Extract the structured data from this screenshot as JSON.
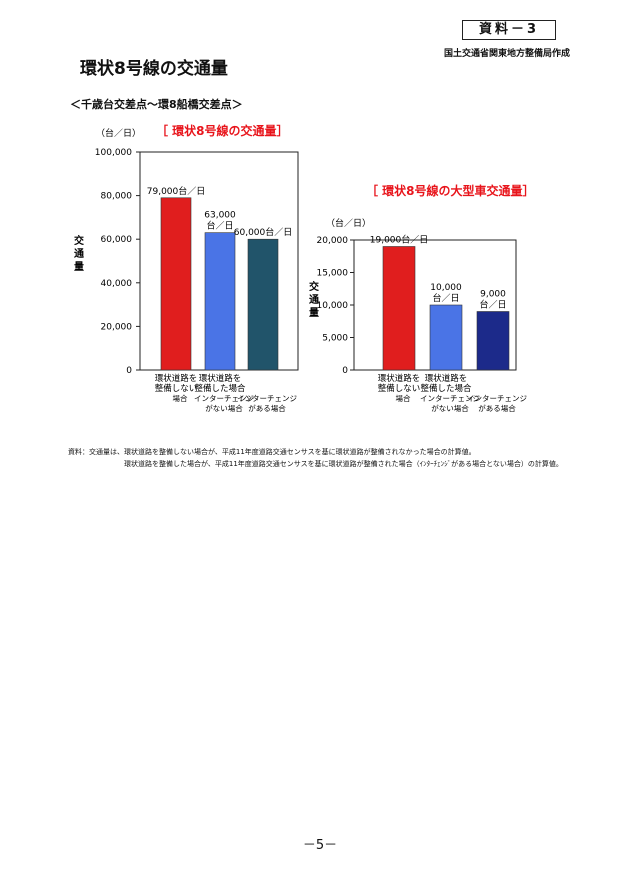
{
  "header": {
    "doc_label": "資料－3",
    "source_org": "国土交通省関東地方整備局作成",
    "page_title": "環状8号線の交通量",
    "section_range": "＜千歳台交差点～環8船橋交差点＞"
  },
  "chart_data": [
    {
      "type": "bar",
      "title": "［ 環状8号線の交通量］",
      "unit_label": "（台／日）",
      "ylabel": "交通量",
      "ylim": [
        0,
        100000
      ],
      "yticks": [
        "0",
        "20,000",
        "40,000",
        "60,000",
        "80,000",
        "100,000"
      ],
      "categories": [
        [
          "環状道路を",
          "整備しない",
          "場合"
        ],
        [
          "環状道路を",
          "整備した場合",
          "インターチェンジ",
          "がない場合"
        ],
        [
          "",
          "",
          "インターチェンジ",
          "がある場合"
        ]
      ],
      "values": [
        79000,
        63000,
        60000
      ],
      "value_labels": [
        [
          "79,000台／日"
        ],
        [
          "63,000",
          "台／日"
        ],
        [
          "60,000台／日"
        ]
      ],
      "colors": [
        "#e01e1e",
        "#4a74e6",
        "#21546a"
      ],
      "grid": false
    },
    {
      "type": "bar",
      "title": "［ 環状8号線の大型車交通量］",
      "unit_label": "（台／日）",
      "ylabel": "交通量",
      "ylim": [
        0,
        20000
      ],
      "yticks": [
        "0",
        "5,000",
        "10,000",
        "15,000",
        "20,000"
      ],
      "categories": [
        [
          "環状道路を",
          "整備しない",
          "場合"
        ],
        [
          "環状道路を",
          "整備した場合",
          "インターチェンジ",
          "がない場合"
        ],
        [
          "",
          "",
          "インターチェンジ",
          "がある場合"
        ]
      ],
      "values": [
        19000,
        10000,
        9000
      ],
      "value_labels": [
        [
          "19,000台／日"
        ],
        [
          "10,000",
          "台／日"
        ],
        [
          "9,000",
          "台／日"
        ]
      ],
      "colors": [
        "#e01e1e",
        "#4a74e6",
        "#1c2a8a"
      ],
      "grid": false
    }
  ],
  "notes": [
    "資料：交通量は、環状道路を整備しない場合が、平成11年度道路交通センサスを基に環状道路が整備されなかった場合の計算値。",
    "環状道路を整備した場合が、平成11年度道路交通センサスを基に環状道路が整備された場合（ｲﾝﾀｰﾁｪﾝｼﾞがある場合とない場合）の計算値。"
  ],
  "footer": {
    "page_number": "－5－"
  }
}
